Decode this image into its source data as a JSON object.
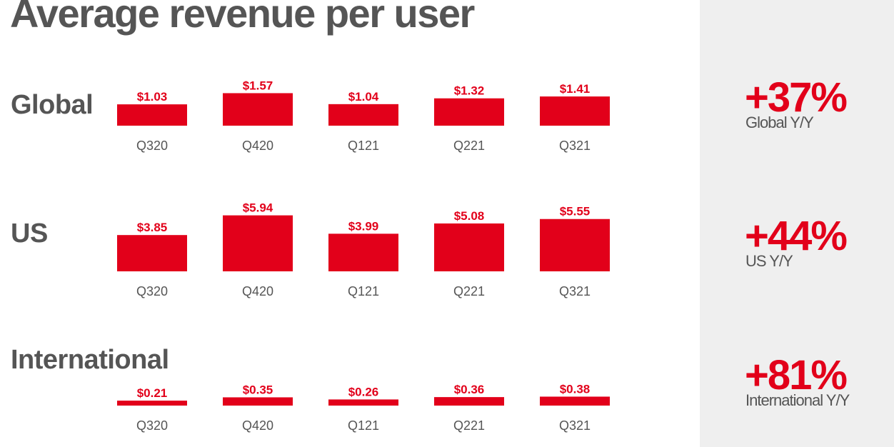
{
  "title": "Average revenue per user",
  "chart_data": [
    {
      "type": "bar",
      "title": "Global",
      "categories": [
        "Q320",
        "Q420",
        "Q121",
        "Q221",
        "Q321"
      ],
      "values": [
        1.03,
        1.57,
        1.04,
        1.32,
        1.41
      ],
      "value_labels": [
        "$1.03",
        "$1.57",
        "$1.04",
        "$1.32",
        "$1.41"
      ],
      "color": "#e2001a"
    },
    {
      "type": "bar",
      "title": "US",
      "categories": [
        "Q320",
        "Q420",
        "Q121",
        "Q221",
        "Q321"
      ],
      "values": [
        3.85,
        5.94,
        3.99,
        5.08,
        5.55
      ],
      "value_labels": [
        "$3.85",
        "$5.94",
        "$3.99",
        "$5.08",
        "$5.55"
      ],
      "color": "#e2001a"
    },
    {
      "type": "bar",
      "title": "International",
      "categories": [
        "Q320",
        "Q420",
        "Q121",
        "Q221",
        "Q321"
      ],
      "values": [
        0.21,
        0.35,
        0.26,
        0.36,
        0.38
      ],
      "value_labels": [
        "$0.21",
        "$0.35",
        "$0.26",
        "$0.36",
        "$0.38"
      ],
      "color": "#e2001a"
    }
  ],
  "stats": [
    {
      "value": "+37%",
      "label": "Global Y/Y"
    },
    {
      "value": "+44%",
      "label": "US Y/Y"
    },
    {
      "value": "+81%",
      "label": "International Y/Y"
    }
  ],
  "colors": {
    "accent": "#e2001a",
    "text": "#555555",
    "panel": "#efefef"
  }
}
